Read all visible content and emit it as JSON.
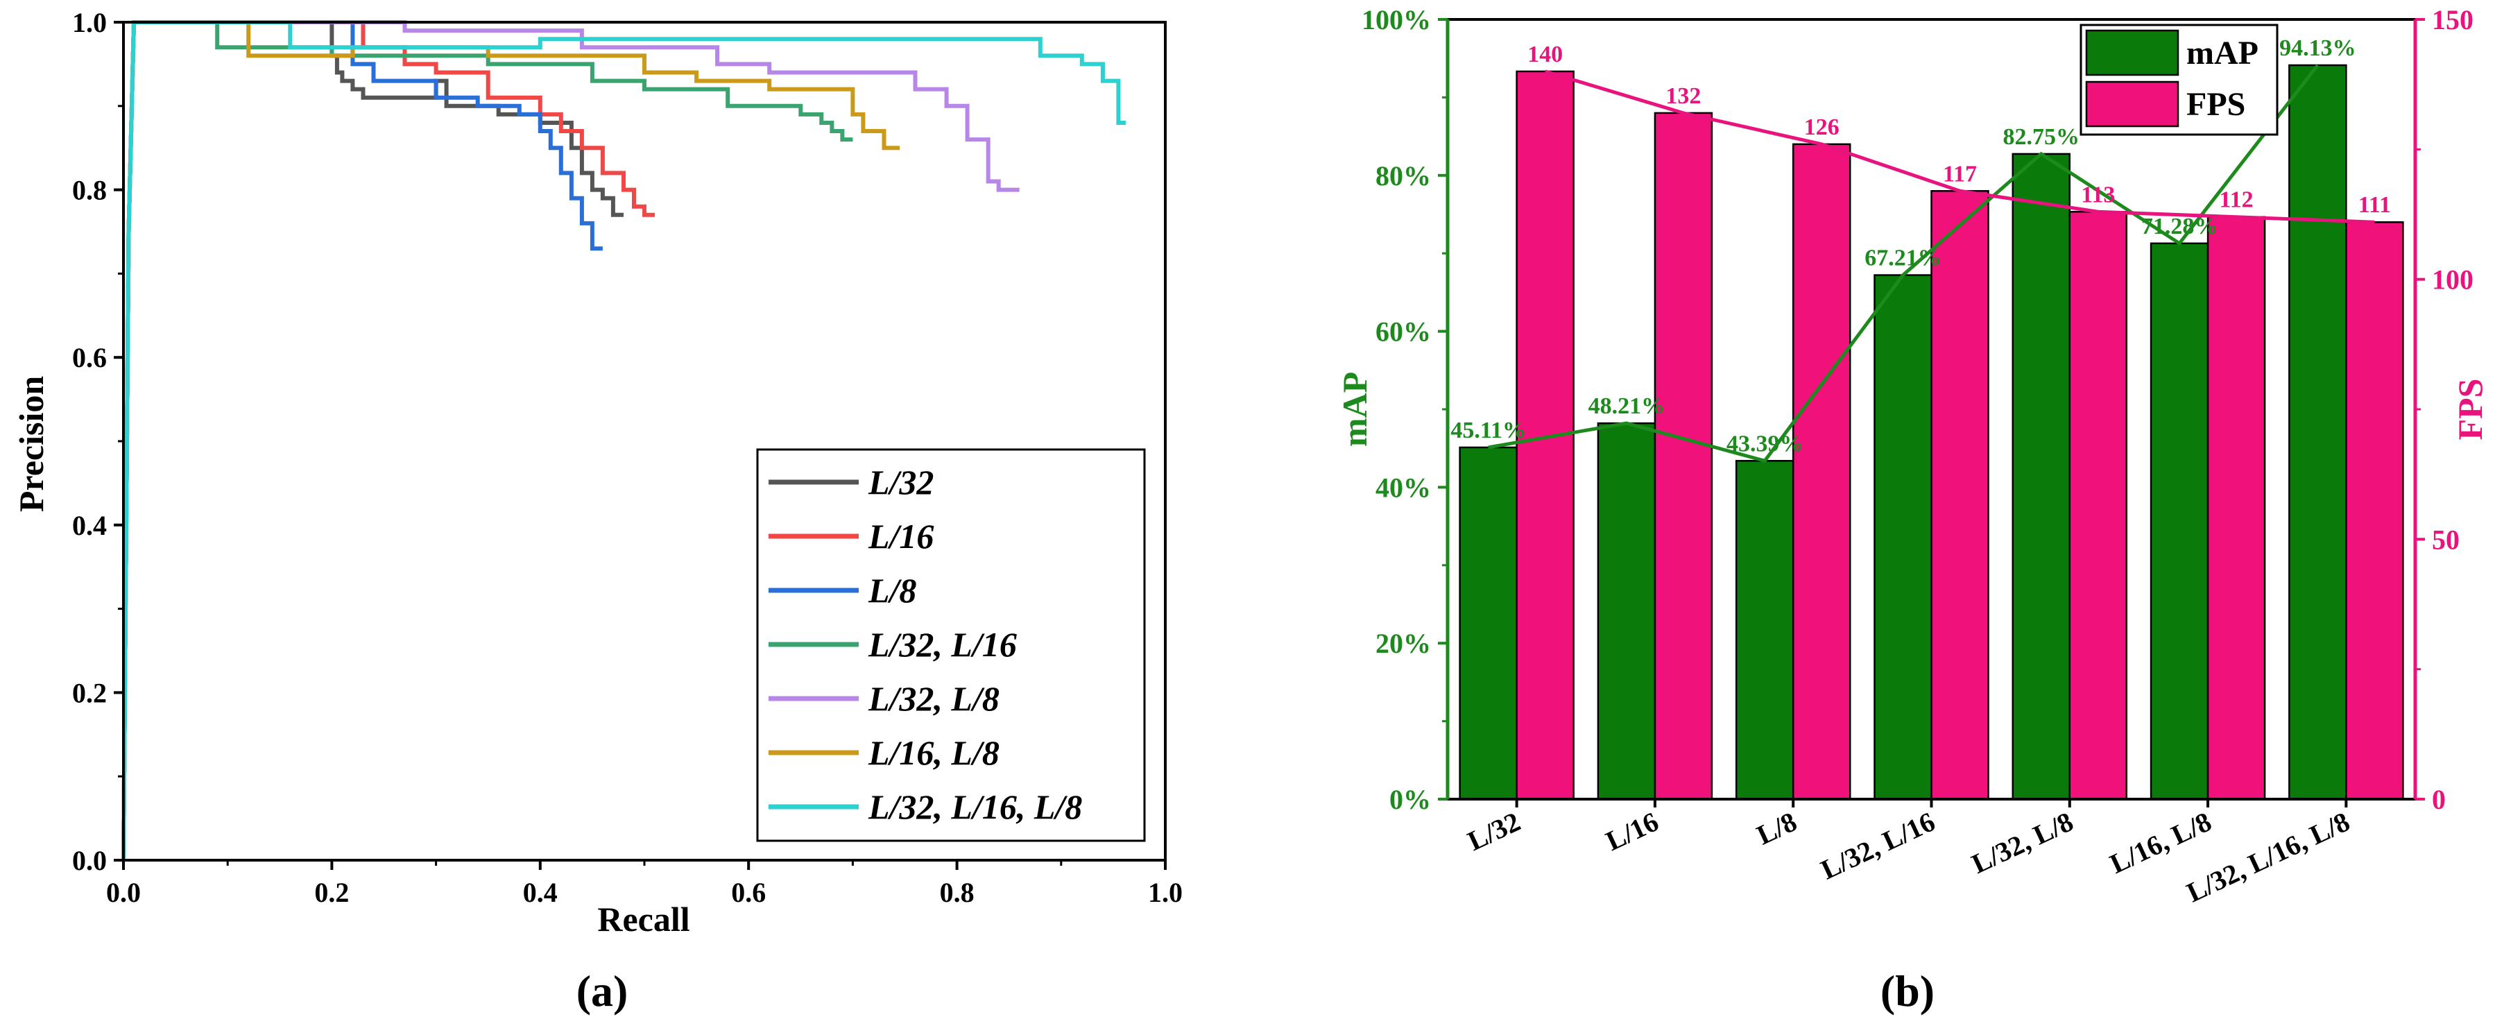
{
  "colors": {
    "L32": "#555555",
    "L16": "#f04747",
    "L8": "#2a6ed8",
    "L32_L16": "#3aa370",
    "L32_L8": "#b687e6",
    "L16_L8": "#cc9a1a",
    "L32_L16_L8": "#2ed0d0",
    "mAP": "#0a7a0a",
    "FPS": "#f0127a",
    "mAP_axis": "#1d8a1d",
    "FPS_axis": "#e8137d"
  },
  "panel_a": {
    "label": "(a)",
    "chart_data": {
      "type": "line",
      "title": "",
      "xlabel": "Recall",
      "ylabel": "Precision",
      "xlim": [
        0.0,
        1.0
      ],
      "ylim": [
        0.0,
        1.0
      ],
      "xticks": [
        "0.0",
        "0.2",
        "0.4",
        "0.6",
        "0.8",
        "1.0"
      ],
      "yticks": [
        "0.0",
        "0.2",
        "0.4",
        "0.6",
        "0.8",
        "1.0"
      ],
      "legend_position": "bottom-right",
      "series": [
        {
          "key": "L32",
          "name": "L/32",
          "x": [
            0.0,
            0.005,
            0.01,
            0.2,
            0.2,
            0.205,
            0.205,
            0.21,
            0.21,
            0.22,
            0.22,
            0.23,
            0.23,
            0.3,
            0.3,
            0.31,
            0.31,
            0.36,
            0.36,
            0.4,
            0.4,
            0.43,
            0.43,
            0.44,
            0.44,
            0.45,
            0.45,
            0.46,
            0.46,
            0.47,
            0.47,
            0.48
          ],
          "y": [
            0.0,
            0.75,
            1.0,
            1.0,
            0.96,
            0.96,
            0.94,
            0.94,
            0.93,
            0.93,
            0.92,
            0.92,
            0.91,
            0.91,
            0.93,
            0.93,
            0.9,
            0.9,
            0.89,
            0.89,
            0.88,
            0.88,
            0.85,
            0.85,
            0.82,
            0.82,
            0.8,
            0.8,
            0.79,
            0.79,
            0.77,
            0.77
          ]
        },
        {
          "key": "L16",
          "name": "L/16",
          "x": [
            0.0,
            0.005,
            0.01,
            0.23,
            0.23,
            0.27,
            0.27,
            0.3,
            0.3,
            0.35,
            0.35,
            0.4,
            0.4,
            0.42,
            0.42,
            0.44,
            0.44,
            0.46,
            0.46,
            0.48,
            0.48,
            0.49,
            0.49,
            0.5,
            0.5,
            0.51
          ],
          "y": [
            0.0,
            0.75,
            1.0,
            1.0,
            0.97,
            0.97,
            0.95,
            0.95,
            0.94,
            0.94,
            0.91,
            0.91,
            0.89,
            0.89,
            0.87,
            0.87,
            0.85,
            0.85,
            0.82,
            0.82,
            0.8,
            0.8,
            0.78,
            0.78,
            0.77,
            0.77
          ]
        },
        {
          "key": "L8",
          "name": "L/8",
          "x": [
            0.0,
            0.005,
            0.01,
            0.22,
            0.22,
            0.24,
            0.24,
            0.3,
            0.3,
            0.34,
            0.34,
            0.38,
            0.38,
            0.4,
            0.4,
            0.41,
            0.41,
            0.42,
            0.42,
            0.43,
            0.43,
            0.44,
            0.44,
            0.45,
            0.45,
            0.46
          ],
          "y": [
            0.0,
            0.75,
            1.0,
            1.0,
            0.95,
            0.95,
            0.93,
            0.93,
            0.91,
            0.91,
            0.9,
            0.9,
            0.89,
            0.89,
            0.87,
            0.87,
            0.85,
            0.85,
            0.82,
            0.82,
            0.79,
            0.79,
            0.76,
            0.76,
            0.73,
            0.73
          ]
        },
        {
          "key": "L32_L16",
          "name": "L/32, L/16",
          "x": [
            0.0,
            0.005,
            0.01,
            0.09,
            0.09,
            0.2,
            0.2,
            0.35,
            0.35,
            0.45,
            0.45,
            0.5,
            0.5,
            0.58,
            0.58,
            0.65,
            0.65,
            0.67,
            0.67,
            0.68,
            0.68,
            0.69,
            0.69,
            0.7
          ],
          "y": [
            0.0,
            0.75,
            1.0,
            1.0,
            0.97,
            0.97,
            0.96,
            0.96,
            0.95,
            0.95,
            0.93,
            0.93,
            0.92,
            0.92,
            0.9,
            0.9,
            0.89,
            0.89,
            0.88,
            0.88,
            0.87,
            0.87,
            0.86,
            0.86
          ]
        },
        {
          "key": "L32_L8",
          "name": "L/32, L/8",
          "x": [
            0.0,
            0.005,
            0.01,
            0.27,
            0.27,
            0.44,
            0.44,
            0.57,
            0.57,
            0.62,
            0.62,
            0.76,
            0.76,
            0.79,
            0.79,
            0.81,
            0.81,
            0.83,
            0.83,
            0.84,
            0.84,
            0.86
          ],
          "y": [
            0.0,
            0.75,
            1.0,
            1.0,
            0.99,
            0.99,
            0.97,
            0.97,
            0.95,
            0.95,
            0.94,
            0.94,
            0.92,
            0.92,
            0.9,
            0.9,
            0.86,
            0.86,
            0.81,
            0.81,
            0.8,
            0.8
          ]
        },
        {
          "key": "L16_L8",
          "name": "L/16, L/8",
          "x": [
            0.0,
            0.005,
            0.01,
            0.12,
            0.12,
            0.22,
            0.22,
            0.35,
            0.35,
            0.5,
            0.5,
            0.55,
            0.55,
            0.62,
            0.62,
            0.66,
            0.66,
            0.7,
            0.7,
            0.71,
            0.71,
            0.73,
            0.73,
            0.745
          ],
          "y": [
            0.0,
            0.75,
            1.0,
            1.0,
            0.96,
            0.96,
            0.97,
            0.97,
            0.96,
            0.96,
            0.94,
            0.94,
            0.93,
            0.93,
            0.92,
            0.92,
            0.92,
            0.92,
            0.89,
            0.89,
            0.87,
            0.87,
            0.85,
            0.85
          ]
        },
        {
          "key": "L32_L16_L8",
          "name": "L/32, L/16, L/8",
          "x": [
            0.0,
            0.005,
            0.01,
            0.16,
            0.16,
            0.4,
            0.4,
            0.88,
            0.88,
            0.92,
            0.92,
            0.94,
            0.94,
            0.955,
            0.955,
            0.962
          ],
          "y": [
            0.0,
            0.75,
            1.0,
            1.0,
            0.97,
            0.97,
            0.98,
            0.98,
            0.96,
            0.96,
            0.95,
            0.95,
            0.93,
            0.93,
            0.88,
            0.88
          ]
        }
      ]
    }
  },
  "panel_b": {
    "label": "(b)",
    "chart_data": {
      "type": "bar",
      "title": "",
      "xlabel": "",
      "categories": [
        "L/32",
        "L/16",
        "L/8",
        "L/32, L/16",
        "L/32, L/8",
        "L/16, L/8",
        "L/32, L/16, L/8"
      ],
      "left_axis": {
        "label": "mAP",
        "ylim": [
          0,
          100
        ],
        "ticks": [
          "0%",
          "20%",
          "40%",
          "60%",
          "80%",
          "100%"
        ]
      },
      "right_axis": {
        "label": "FPS",
        "ylim": [
          0,
          150
        ],
        "ticks": [
          "0",
          "50",
          "100",
          "150"
        ]
      },
      "legend_position": "top-right",
      "legend": [
        "mAP",
        "FPS"
      ],
      "series": [
        {
          "key": "mAP",
          "name": "mAP",
          "axis": "left",
          "values": [
            45.11,
            48.21,
            43.39,
            67.21,
            82.75,
            71.28,
            94.13
          ],
          "labels": [
            "45.11%",
            "48.21%",
            "43.39%",
            "67.21%",
            "82.75%",
            "71.28%",
            "94.13%"
          ]
        },
        {
          "key": "FPS",
          "name": "FPS",
          "axis": "right",
          "values": [
            140,
            132,
            126,
            117,
            113,
            112,
            111
          ],
          "labels": [
            "140",
            "132",
            "126",
            "117",
            "113",
            "112",
            "111"
          ]
        }
      ]
    }
  }
}
